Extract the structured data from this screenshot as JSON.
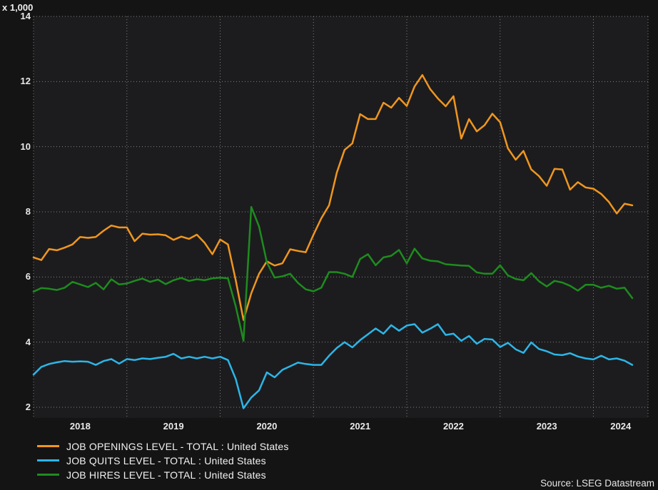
{
  "source": "Source: LSEG Datastream",
  "colors": {
    "page_background": "#141414",
    "plot_background": "#1c1c1e",
    "gridline": "#9b9b9b",
    "axis_text": "#e9e9e9",
    "legend_text": "#f2f2f2",
    "openings_orange": "#f0961e",
    "quits_cyan": "#2cb6e8",
    "hires_green": "#1e8c1e"
  },
  "chart_data": {
    "type": "line",
    "title": "",
    "y_axis_note": "x 1,000",
    "frequency": "monthly",
    "grid": "dotted",
    "legend_position": "bottom-left",
    "ylim": [
      2,
      14
    ],
    "y_ticks": [
      14,
      12,
      10,
      8,
      6,
      4,
      2
    ],
    "x_year_labels": [
      "2018",
      "2019",
      "2020",
      "2021",
      "2022",
      "2023",
      "2024"
    ],
    "x": [
      "2018-01",
      "2018-02",
      "2018-03",
      "2018-04",
      "2018-05",
      "2018-06",
      "2018-07",
      "2018-08",
      "2018-09",
      "2018-10",
      "2018-11",
      "2018-12",
      "2019-01",
      "2019-02",
      "2019-03",
      "2019-04",
      "2019-05",
      "2019-06",
      "2019-07",
      "2019-08",
      "2019-09",
      "2019-10",
      "2019-11",
      "2019-12",
      "2020-01",
      "2020-02",
      "2020-03",
      "2020-04",
      "2020-05",
      "2020-06",
      "2020-07",
      "2020-08",
      "2020-09",
      "2020-10",
      "2020-11",
      "2020-12",
      "2021-01",
      "2021-02",
      "2021-03",
      "2021-04",
      "2021-05",
      "2021-06",
      "2021-07",
      "2021-08",
      "2021-09",
      "2021-10",
      "2021-11",
      "2021-12",
      "2022-01",
      "2022-02",
      "2022-03",
      "2022-04",
      "2022-05",
      "2022-06",
      "2022-07",
      "2022-08",
      "2022-09",
      "2022-10",
      "2022-11",
      "2022-12",
      "2023-01",
      "2023-02",
      "2023-03",
      "2023-04",
      "2023-05",
      "2023-06",
      "2023-07",
      "2023-08",
      "2023-09",
      "2023-10",
      "2023-11",
      "2023-12",
      "2024-01",
      "2024-02",
      "2024-03",
      "2024-04",
      "2024-05",
      "2024-06"
    ],
    "series": [
      {
        "name": "JOB OPENINGS LEVEL - TOTAL : United States",
        "color": "#f0961e",
        "values": [
          6.6,
          6.52,
          6.86,
          6.82,
          6.9,
          7.0,
          7.23,
          7.2,
          7.23,
          7.42,
          7.58,
          7.52,
          7.52,
          7.1,
          7.33,
          7.3,
          7.31,
          7.28,
          7.14,
          7.24,
          7.17,
          7.3,
          7.05,
          6.7,
          7.15,
          7.0,
          5.9,
          4.68,
          5.5,
          6.1,
          6.48,
          6.35,
          6.42,
          6.85,
          6.8,
          6.76,
          7.3,
          7.8,
          8.2,
          9.2,
          9.9,
          10.1,
          11.0,
          10.85,
          10.85,
          11.35,
          11.2,
          11.5,
          11.25,
          11.85,
          12.2,
          11.77,
          11.48,
          11.24,
          11.55,
          10.25,
          10.85,
          10.47,
          10.66,
          11.01,
          10.75,
          9.95,
          9.6,
          9.87,
          9.3,
          9.1,
          8.8,
          9.32,
          9.3,
          8.68,
          8.91,
          8.75,
          8.71,
          8.55,
          8.3,
          7.95,
          8.25,
          8.2
        ]
      },
      {
        "name": "JOB QUITS LEVEL - TOTAL : United States",
        "color": "#2cb6e8",
        "values": [
          3.0,
          3.24,
          3.33,
          3.38,
          3.42,
          3.4,
          3.41,
          3.4,
          3.3,
          3.42,
          3.48,
          3.34,
          3.48,
          3.45,
          3.5,
          3.48,
          3.52,
          3.55,
          3.64,
          3.5,
          3.55,
          3.5,
          3.55,
          3.5,
          3.55,
          3.45,
          2.87,
          1.97,
          2.3,
          2.52,
          3.07,
          2.92,
          3.15,
          3.26,
          3.37,
          3.33,
          3.3,
          3.3,
          3.58,
          3.82,
          4.0,
          3.84,
          4.06,
          4.24,
          4.42,
          4.26,
          4.52,
          4.35,
          4.51,
          4.55,
          4.29,
          4.41,
          4.55,
          4.22,
          4.26,
          4.04,
          4.19,
          3.95,
          4.1,
          4.08,
          3.85,
          3.98,
          3.78,
          3.67,
          3.99,
          3.79,
          3.72,
          3.62,
          3.6,
          3.66,
          3.56,
          3.5,
          3.47,
          3.58,
          3.47,
          3.5,
          3.43,
          3.3
        ]
      },
      {
        "name": "JOB HIRES LEVEL - TOTAL : United States",
        "color": "#1e8c1e",
        "values": [
          5.55,
          5.66,
          5.64,
          5.6,
          5.67,
          5.85,
          5.77,
          5.69,
          5.82,
          5.62,
          5.93,
          5.77,
          5.8,
          5.88,
          5.95,
          5.85,
          5.92,
          5.78,
          5.9,
          5.97,
          5.88,
          5.93,
          5.9,
          5.96,
          5.98,
          5.96,
          5.1,
          4.04,
          8.15,
          7.55,
          6.45,
          5.98,
          6.02,
          6.1,
          5.82,
          5.62,
          5.56,
          5.67,
          6.15,
          6.15,
          6.1,
          6.0,
          6.55,
          6.7,
          6.36,
          6.6,
          6.65,
          6.83,
          6.42,
          6.87,
          6.57,
          6.5,
          6.48,
          6.39,
          6.37,
          6.35,
          6.34,
          6.14,
          6.1,
          6.1,
          6.36,
          6.05,
          5.94,
          5.9,
          6.12,
          5.87,
          5.71,
          5.88,
          5.83,
          5.73,
          5.58,
          5.76,
          5.76,
          5.67,
          5.73,
          5.64,
          5.67,
          5.35
        ]
      }
    ]
  }
}
